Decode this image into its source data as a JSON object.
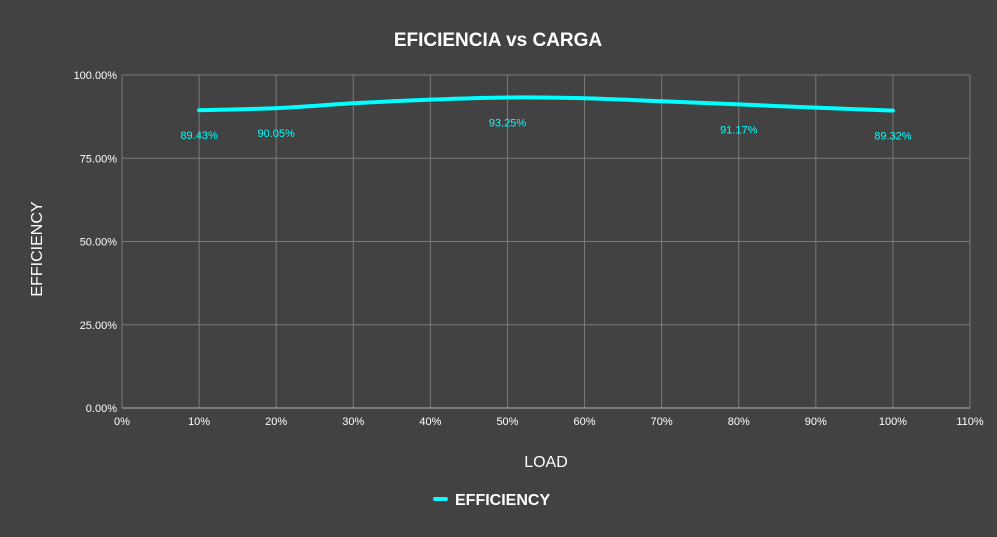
{
  "chart_data": {
    "type": "line",
    "title": "EFICIENCIA vs CARGA",
    "xlabel": "LOAD",
    "ylabel": "EFFICIENCY",
    "xlim": [
      0,
      110
    ],
    "ylim": [
      0,
      100
    ],
    "x_ticks": [
      0,
      10,
      20,
      30,
      40,
      50,
      60,
      70,
      80,
      90,
      100,
      110
    ],
    "x_tick_labels": [
      "0%",
      "10%",
      "20%",
      "30%",
      "40%",
      "50%",
      "60%",
      "70%",
      "80%",
      "90%",
      "100%",
      "110%"
    ],
    "y_ticks": [
      0,
      25,
      50,
      75,
      100
    ],
    "y_tick_labels": [
      "0.00%",
      "25.00%",
      "50.00%",
      "75.00%",
      "100.00%"
    ],
    "grid": true,
    "legend_position": "bottom",
    "series": [
      {
        "name": "EFFICIENCY",
        "color": "#00FFFF",
        "x": [
          10,
          20,
          30,
          40,
          50,
          60,
          70,
          80,
          90,
          100
        ],
        "y": [
          89.43,
          90.05,
          91.5,
          92.6,
          93.25,
          93.0,
          92.1,
          91.17,
          90.2,
          89.32
        ],
        "data_labels": [
          {
            "x": 10,
            "text": "89.43%"
          },
          {
            "x": 20,
            "text": "90.05%"
          },
          {
            "x": 50,
            "text": "93.25%"
          },
          {
            "x": 80,
            "text": "91.17%"
          },
          {
            "x": 100,
            "text": "89.32%"
          }
        ]
      }
    ]
  },
  "colors": {
    "background": "#424242",
    "grid": "#7a7a7a",
    "text": "#ffffff",
    "series": "#00FFFF"
  }
}
